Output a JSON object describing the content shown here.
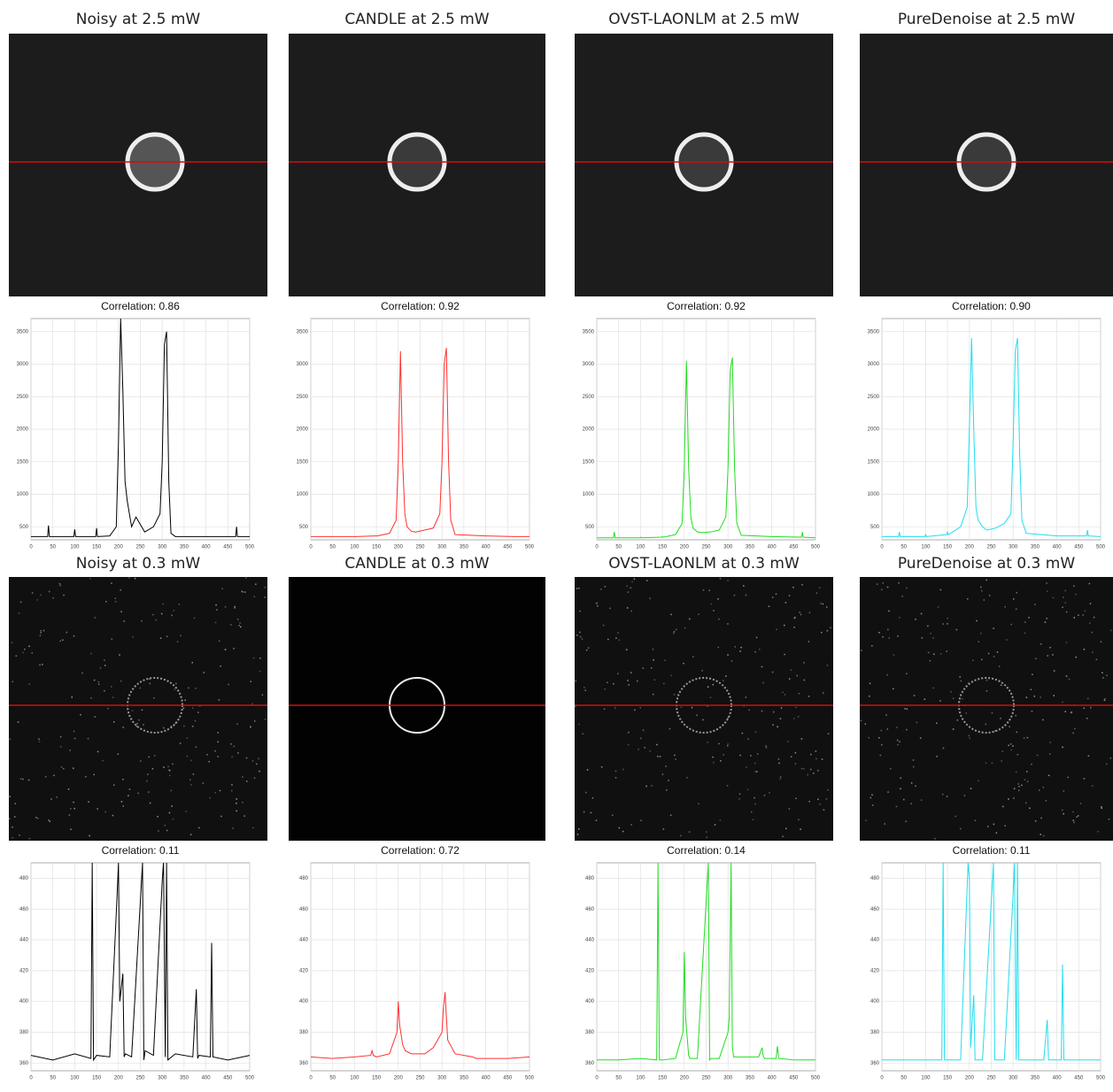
{
  "images": [
    {
      "title": "Noisy at 2.5 mW"
    },
    {
      "title": "CANDLE at 2.5 mW"
    },
    {
      "title": "OVST-LAONLM at 2.5 mW"
    },
    {
      "title": "PureDenoise at 2.5 mW"
    },
    {
      "title": "Noisy at 0.3 mW"
    },
    {
      "title": "CANDLE at 0.3 mW"
    },
    {
      "title": "OVST-LAONLM at 0.3 mW"
    },
    {
      "title": "PureDenoise at 0.3 mW"
    }
  ],
  "chart_data": [
    {
      "type": "line",
      "title": "Correlation: 0.86",
      "color": "#000000",
      "grid": true,
      "x": [
        0,
        38,
        40,
        42,
        98,
        100,
        102,
        148,
        150,
        152,
        180,
        195,
        200,
        205,
        210,
        215,
        220,
        230,
        240,
        260,
        280,
        295,
        300,
        305,
        310,
        315,
        320,
        330,
        400,
        468,
        470,
        472,
        500
      ],
      "values": [
        350,
        350,
        520,
        350,
        350,
        460,
        350,
        350,
        480,
        350,
        360,
        500,
        1800,
        3700,
        2600,
        1200,
        900,
        500,
        650,
        420,
        500,
        700,
        1500,
        3300,
        3500,
        1200,
        400,
        350,
        350,
        350,
        500,
        350,
        350
      ],
      "xlim": [
        0,
        500
      ],
      "ylim": [
        300,
        3700
      ],
      "xticks": [
        0,
        50,
        100,
        150,
        200,
        250,
        300,
        350,
        400,
        450,
        500
      ],
      "yticks": [
        500,
        1000,
        1500,
        2000,
        2500,
        3000,
        3500
      ]
    },
    {
      "type": "line",
      "title": "Correlation: 0.92",
      "color": "#ff3030",
      "grid": true,
      "x": [
        0,
        38,
        40,
        42,
        98,
        100,
        102,
        148,
        150,
        152,
        180,
        195,
        200,
        205,
        210,
        215,
        220,
        230,
        240,
        260,
        280,
        295,
        300,
        305,
        310,
        315,
        320,
        330,
        400,
        468,
        470,
        472,
        500
      ],
      "values": [
        350,
        350,
        350,
        350,
        350,
        350,
        350,
        360,
        360,
        360,
        400,
        600,
        1500,
        3200,
        1500,
        700,
        500,
        430,
        420,
        450,
        480,
        700,
        1500,
        3000,
        3250,
        1500,
        600,
        380,
        360,
        350,
        350,
        350,
        350
      ],
      "xlim": [
        0,
        500
      ],
      "ylim": [
        300,
        3700
      ],
      "xticks": [
        0,
        50,
        100,
        150,
        200,
        250,
        300,
        350,
        400,
        450,
        500
      ],
      "yticks": [
        500,
        1000,
        1500,
        2000,
        2500,
        3000,
        3500
      ]
    },
    {
      "type": "line",
      "title": "Correlation: 0.92",
      "color": "#22dd22",
      "grid": true,
      "x": [
        0,
        38,
        40,
        42,
        98,
        100,
        102,
        148,
        150,
        152,
        180,
        195,
        200,
        205,
        210,
        215,
        220,
        230,
        240,
        260,
        280,
        295,
        300,
        305,
        310,
        315,
        320,
        330,
        400,
        468,
        470,
        472,
        500
      ],
      "values": [
        330,
        330,
        420,
        330,
        330,
        340,
        330,
        340,
        350,
        340,
        380,
        550,
        1400,
        3050,
        1400,
        650,
        480,
        420,
        410,
        420,
        450,
        650,
        1400,
        2900,
        3100,
        1400,
        560,
        370,
        350,
        340,
        420,
        340,
        330
      ],
      "xlim": [
        0,
        500
      ],
      "ylim": [
        300,
        3700
      ],
      "xticks": [
        0,
        50,
        100,
        150,
        200,
        250,
        300,
        350,
        400,
        450,
        500
      ],
      "yticks": [
        500,
        1000,
        1500,
        2000,
        2500,
        3000,
        3500
      ]
    },
    {
      "type": "line",
      "title": "Correlation: 0.90",
      "color": "#22ddee",
      "grid": true,
      "x": [
        0,
        38,
        40,
        42,
        98,
        100,
        102,
        148,
        150,
        152,
        180,
        195,
        200,
        205,
        210,
        215,
        220,
        230,
        240,
        260,
        280,
        295,
        300,
        305,
        310,
        315,
        320,
        330,
        400,
        468,
        470,
        472,
        500
      ],
      "values": [
        350,
        350,
        420,
        350,
        350,
        380,
        350,
        380,
        420,
        380,
        500,
        800,
        2000,
        3400,
        2000,
        800,
        600,
        500,
        450,
        480,
        550,
        700,
        1800,
        3200,
        3400,
        1600,
        600,
        400,
        360,
        360,
        450,
        360,
        350
      ],
      "xlim": [
        0,
        500
      ],
      "ylim": [
        300,
        3700
      ],
      "xticks": [
        0,
        50,
        100,
        150,
        200,
        250,
        300,
        350,
        400,
        450,
        500
      ],
      "yticks": [
        500,
        1000,
        1500,
        2000,
        2500,
        3000,
        3500
      ]
    },
    {
      "type": "line",
      "title": "Correlation: 0.11",
      "color": "#000000",
      "grid": true,
      "x": [
        0,
        50,
        100,
        137,
        140,
        143,
        150,
        180,
        197,
        200,
        203,
        210,
        213,
        216,
        230,
        255,
        258,
        261,
        280,
        300,
        303,
        307,
        310,
        313,
        330,
        370,
        378,
        381,
        384,
        410,
        413,
        416,
        450,
        500
      ],
      "values": [
        365,
        362,
        366,
        363,
        490,
        362,
        365,
        364,
        470,
        490,
        400,
        418,
        364,
        366,
        364,
        490,
        362,
        368,
        365,
        478,
        490,
        364,
        490,
        362,
        366,
        364,
        408,
        363,
        365,
        364,
        438,
        364,
        362,
        365
      ],
      "xlim": [
        0,
        500
      ],
      "ylim": [
        355,
        490
      ],
      "xticks": [
        0,
        50,
        100,
        150,
        200,
        250,
        300,
        350,
        400,
        450,
        500
      ],
      "yticks": [
        360,
        380,
        400,
        420,
        440,
        460,
        480
      ]
    },
    {
      "type": "line",
      "title": "Correlation: 0.72",
      "color": "#ff3030",
      "grid": true,
      "x": [
        0,
        50,
        100,
        137,
        140,
        143,
        150,
        180,
        197,
        200,
        203,
        210,
        213,
        216,
        230,
        255,
        258,
        261,
        280,
        300,
        303,
        307,
        310,
        313,
        330,
        370,
        378,
        381,
        384,
        410,
        413,
        416,
        450,
        500
      ],
      "values": [
        364,
        363,
        364,
        365,
        368,
        365,
        364,
        366,
        380,
        400,
        385,
        372,
        370,
        368,
        366,
        366,
        366,
        366,
        370,
        380,
        395,
        406,
        390,
        375,
        366,
        364,
        363,
        363,
        363,
        363,
        363,
        363,
        363,
        364
      ],
      "xlim": [
        0,
        500
      ],
      "ylim": [
        355,
        490
      ],
      "xticks": [
        0,
        50,
        100,
        150,
        200,
        250,
        300,
        350,
        400,
        450,
        500
      ],
      "yticks": [
        360,
        380,
        400,
        420,
        440,
        460,
        480
      ]
    },
    {
      "type": "line",
      "title": "Correlation: 0.14",
      "color": "#22dd22",
      "grid": true,
      "x": [
        0,
        50,
        100,
        137,
        140,
        143,
        150,
        180,
        197,
        200,
        203,
        210,
        213,
        216,
        230,
        255,
        258,
        261,
        280,
        300,
        303,
        307,
        310,
        313,
        330,
        370,
        378,
        381,
        384,
        410,
        413,
        416,
        450,
        500
      ],
      "values": [
        362,
        362,
        363,
        362,
        490,
        362,
        362,
        363,
        380,
        432,
        390,
        365,
        363,
        363,
        363,
        490,
        362,
        363,
        363,
        380,
        390,
        490,
        370,
        364,
        364,
        364,
        370,
        364,
        363,
        363,
        371,
        363,
        362,
        362
      ],
      "xlim": [
        0,
        500
      ],
      "ylim": [
        355,
        490
      ],
      "xticks": [
        0,
        50,
        100,
        150,
        200,
        250,
        300,
        350,
        400,
        450,
        500
      ],
      "yticks": [
        360,
        380,
        400,
        420,
        440,
        460,
        480
      ]
    },
    {
      "type": "line",
      "title": "Correlation: 0.11",
      "color": "#22ddee",
      "grid": true,
      "x": [
        0,
        50,
        100,
        137,
        140,
        143,
        150,
        180,
        197,
        200,
        203,
        210,
        213,
        216,
        230,
        255,
        258,
        261,
        280,
        300,
        303,
        307,
        310,
        313,
        330,
        370,
        378,
        381,
        384,
        410,
        413,
        416,
        450,
        500
      ],
      "values": [
        362,
        362,
        362,
        362,
        490,
        362,
        362,
        362,
        490,
        480,
        370,
        404,
        362,
        362,
        362,
        490,
        362,
        362,
        362,
        470,
        490,
        362,
        490,
        362,
        362,
        362,
        388,
        362,
        362,
        362,
        424,
        362,
        362,
        362
      ],
      "xlim": [
        0,
        500
      ],
      "ylim": [
        355,
        490
      ],
      "xticks": [
        0,
        50,
        100,
        150,
        200,
        250,
        300,
        350,
        400,
        450,
        500
      ],
      "yticks": [
        360,
        380,
        400,
        420,
        440,
        460,
        480
      ]
    }
  ]
}
